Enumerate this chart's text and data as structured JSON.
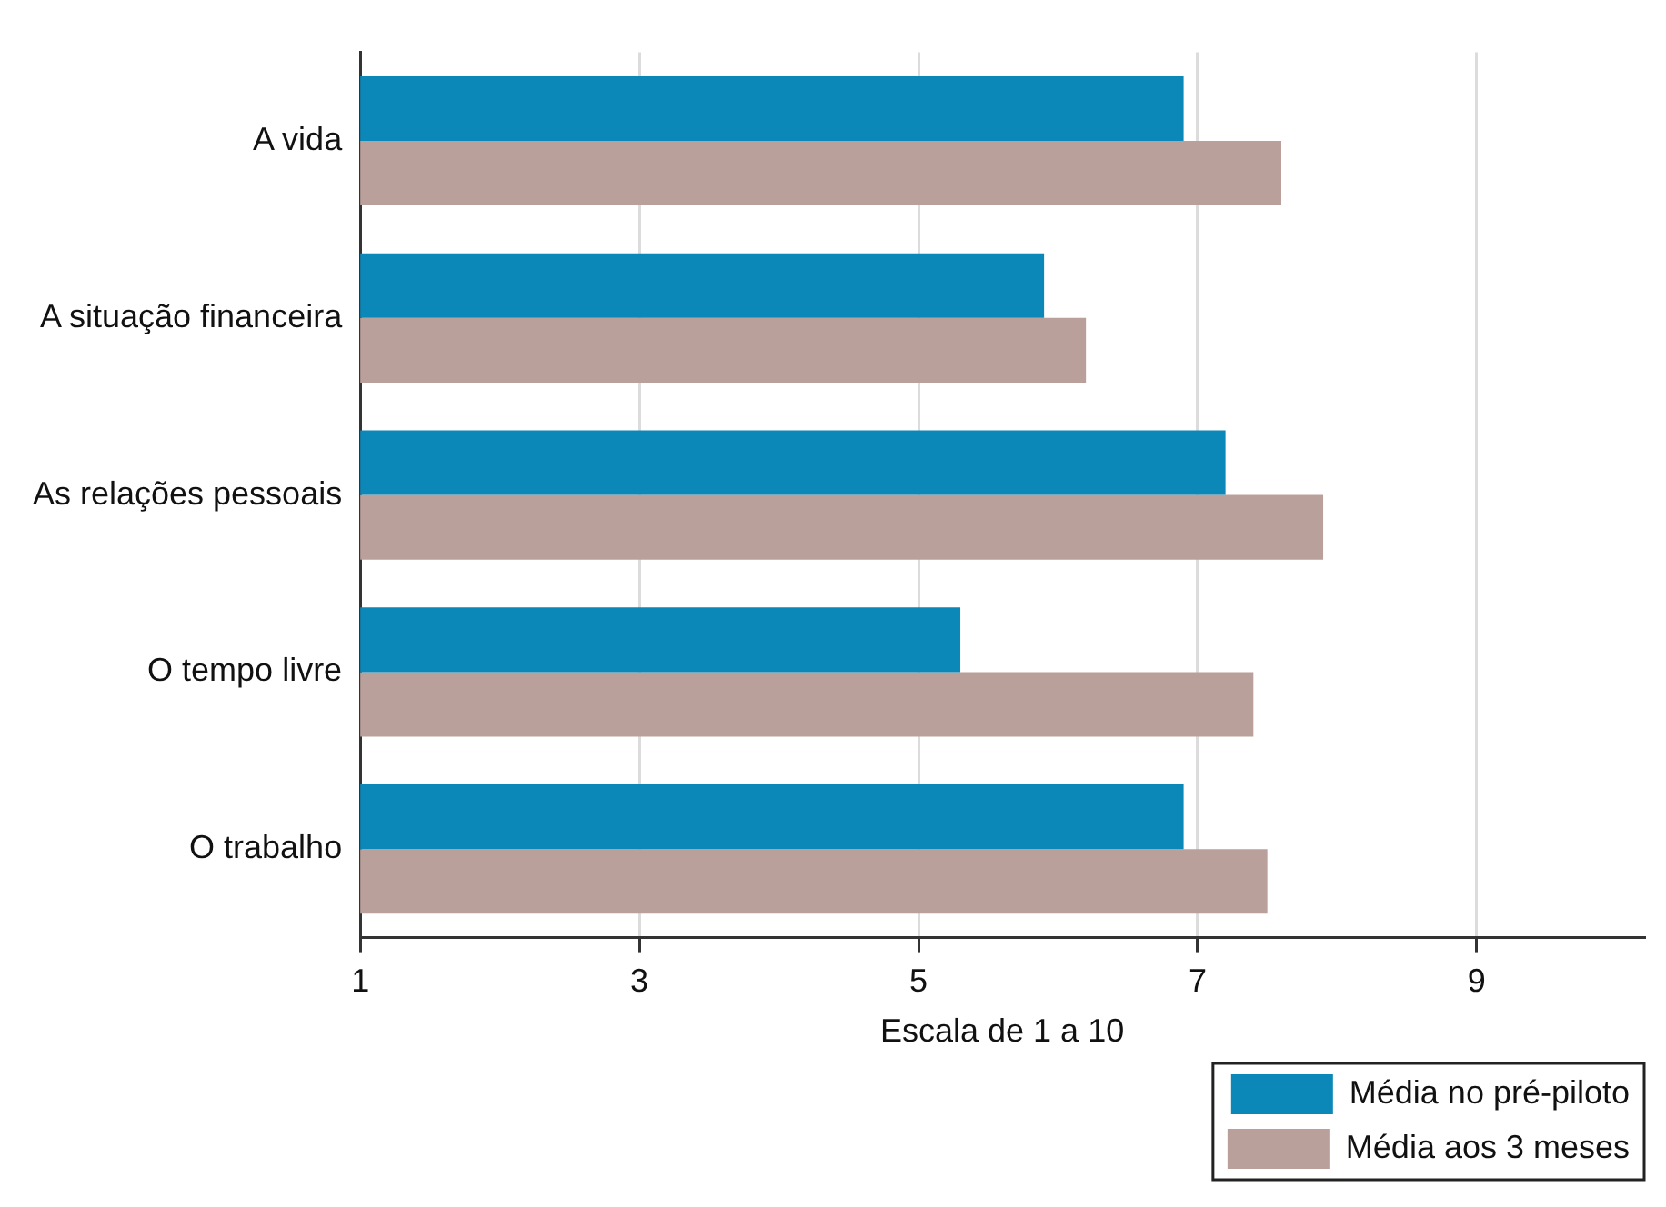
{
  "chart_data": {
    "type": "bar",
    "orientation": "horizontal",
    "xlabel": "Escala de 1 a 10",
    "categories": [
      "A vida",
      "A situação financeira",
      "As relações pessoais",
      "O tempo livre",
      "O trabalho"
    ],
    "series": [
      {
        "name": "Média no pré-piloto",
        "color": "#0b87b8",
        "values": [
          6.9,
          5.9,
          7.2,
          5.3,
          6.9
        ]
      },
      {
        "name": "Média aos 3 meses",
        "color": "#b9a09a",
        "values": [
          7.6,
          6.2,
          7.9,
          7.4,
          7.5
        ]
      }
    ],
    "xlim": [
      1,
      10.2
    ],
    "xticks": [
      1,
      3,
      5,
      7,
      9
    ],
    "grid": "x",
    "legend": "bottom"
  }
}
